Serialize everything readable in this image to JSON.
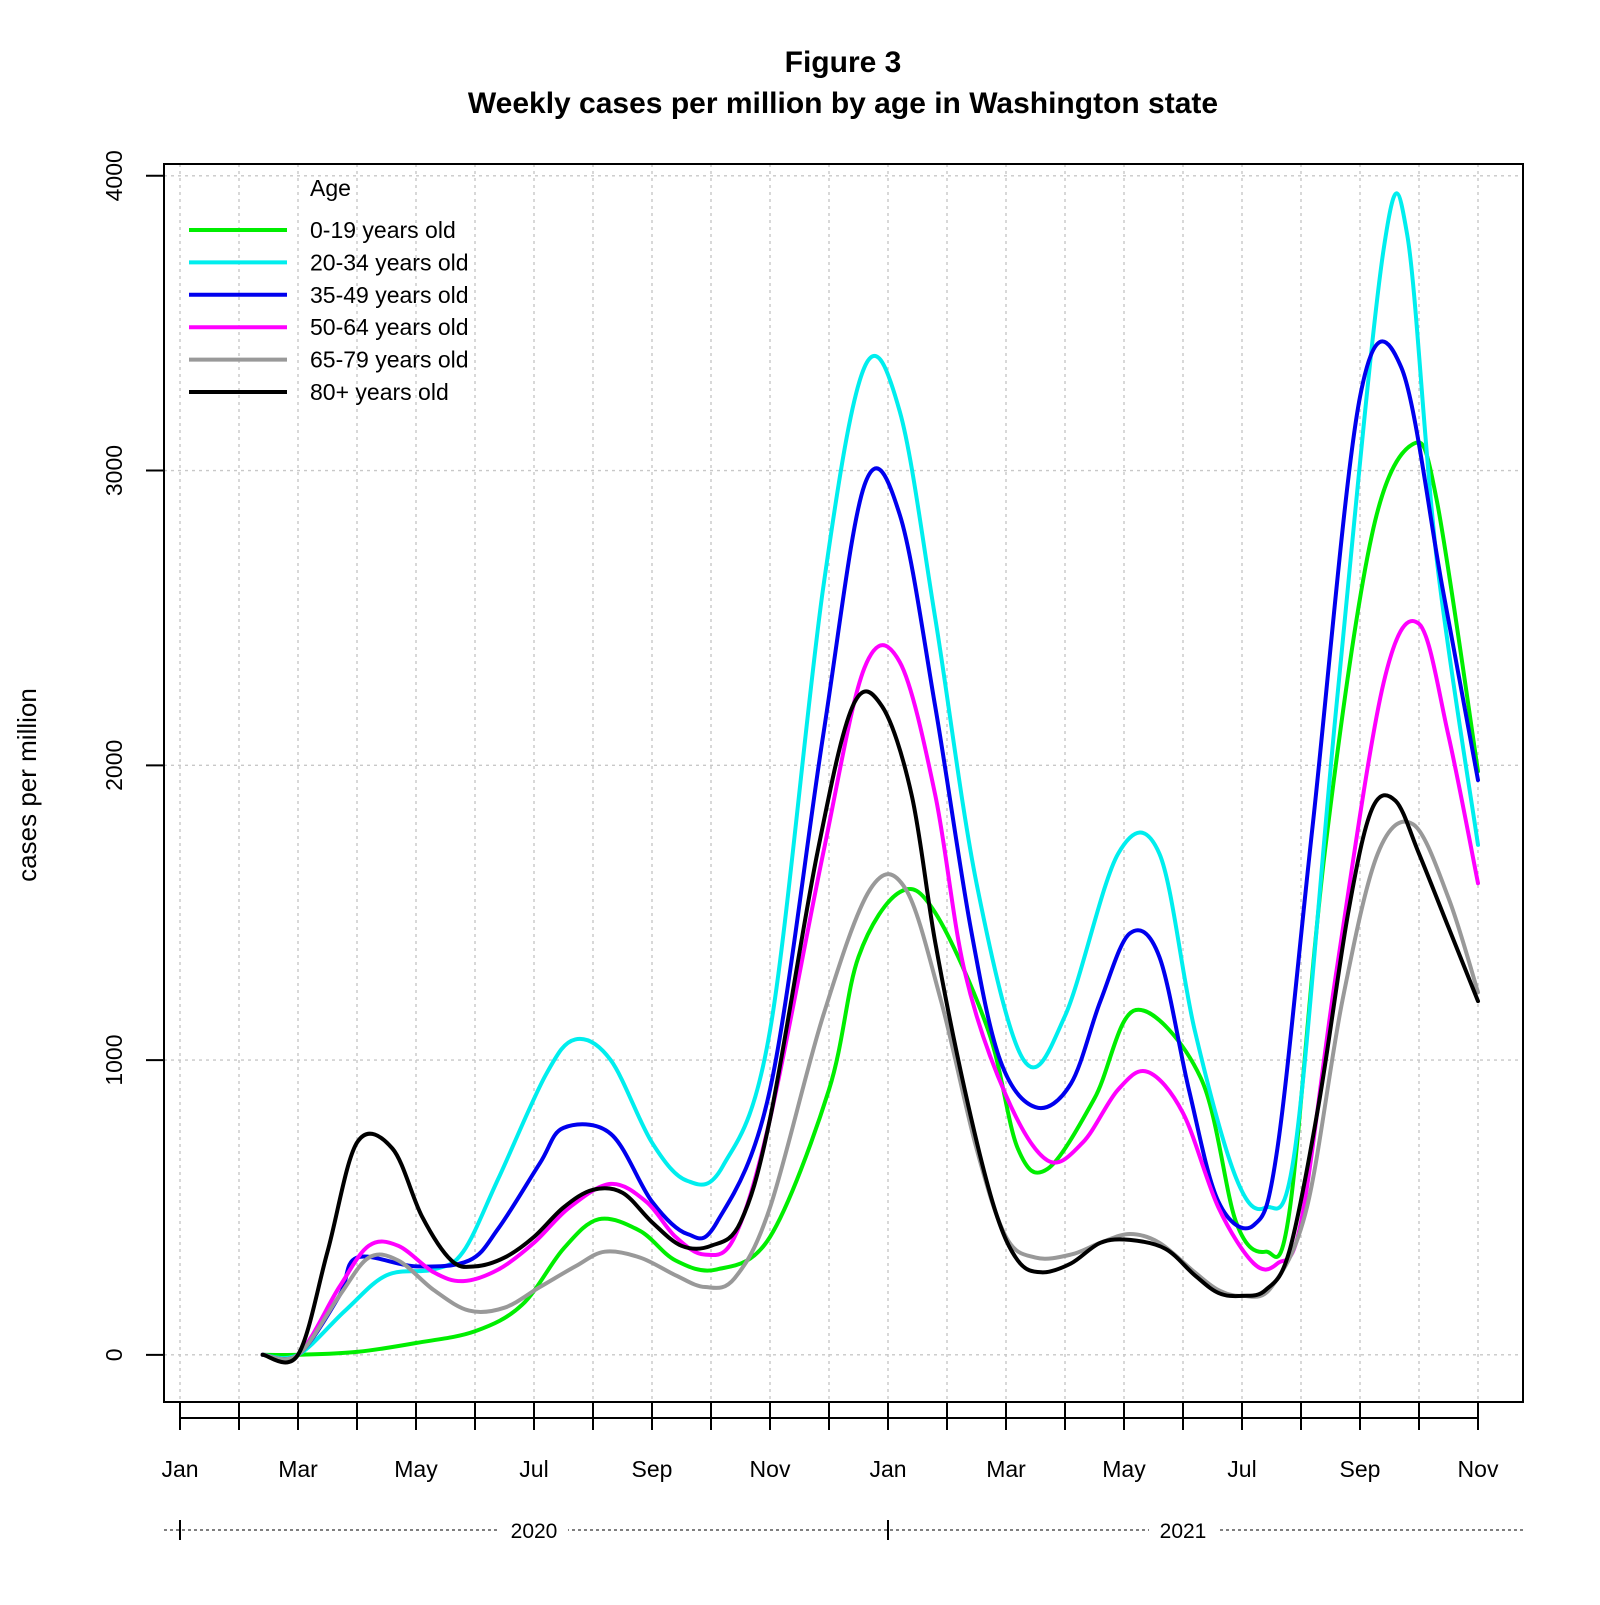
{
  "chart_data": {
    "type": "line",
    "title": "Figure 3",
    "subtitle": "Weekly cases per million by age in Washington state",
    "xlabel": "",
    "ylabel": "cases per million",
    "ylim": [
      -160,
      4040
    ],
    "y_ticks": [
      0,
      1000,
      2000,
      3000,
      4000
    ],
    "grid": true,
    "x_ticks": [
      "Jan",
      "Mar",
      "May",
      "Jul",
      "Sep",
      "Nov",
      "Jan",
      "Mar",
      "May",
      "Jul",
      "Sep",
      "Nov"
    ],
    "year_labels": [
      "2020",
      "2021"
    ],
    "legend": {
      "title": "Age",
      "placement": "top-left"
    },
    "x_unit": "month index (0 = Jan 1 2020)",
    "series": [
      {
        "name": "0-19 years old",
        "color": "#00ee00",
        "x": [
          1.4,
          2.0,
          3.0,
          4.0,
          5.0,
          5.8,
          6.5,
          7.1,
          7.8,
          8.4,
          9.1,
          10.0,
          11.0,
          11.5,
          12.2,
          12.8,
          13.7,
          14.2,
          14.7,
          15.5,
          16.2,
          17.3,
          17.9,
          18.4,
          18.8,
          19.4,
          20.2,
          20.9,
          21.3,
          22.0
        ],
        "y": [
          0,
          0,
          10,
          40,
          80,
          170,
          360,
          460,
          420,
          320,
          290,
          400,
          900,
          1350,
          1570,
          1500,
          1100,
          700,
          630,
          870,
          1170,
          940,
          450,
          350,
          480,
          1700,
          2780,
          3090,
          2900,
          1980
        ]
      },
      {
        "name": "20-34 years old",
        "color": "#00eeee",
        "x": [
          1.4,
          2.0,
          2.8,
          3.5,
          4.3,
          4.8,
          5.4,
          6.2,
          6.7,
          7.3,
          8.0,
          8.6,
          9.2,
          10.0,
          10.9,
          11.6,
          12.2,
          12.8,
          13.5,
          14.3,
          15.0,
          15.9,
          16.6,
          17.2,
          17.9,
          18.4,
          18.9,
          19.6,
          20.4,
          20.8,
          21.3,
          22.0
        ],
        "y": [
          0,
          0,
          150,
          270,
          290,
          350,
          600,
          950,
          1070,
          1000,
          720,
          590,
          640,
          1100,
          2600,
          3350,
          3200,
          2500,
          1600,
          1000,
          1150,
          1700,
          1700,
          1100,
          600,
          500,
          700,
          2200,
          3750,
          3800,
          2700,
          1730
        ]
      },
      {
        "name": "35-49 years old",
        "color": "#0000ee",
        "x": [
          1.4,
          2.0,
          2.7,
          3.0,
          4.0,
          4.9,
          5.4,
          6.1,
          6.5,
          7.3,
          8.0,
          8.6,
          9.1,
          10.0,
          10.9,
          11.6,
          12.2,
          12.8,
          13.4,
          13.9,
          14.5,
          15.1,
          15.6,
          16.1,
          16.6,
          17.1,
          17.6,
          18.2,
          18.6,
          19.2,
          20.0,
          20.7,
          21.4,
          22.0
        ],
        "y": [
          0,
          0,
          200,
          330,
          300,
          320,
          430,
          650,
          770,
          750,
          520,
          410,
          450,
          900,
          2100,
          2950,
          2850,
          2200,
          1450,
          1000,
          840,
          920,
          1200,
          1430,
          1350,
          900,
          520,
          440,
          700,
          1800,
          3250,
          3350,
          2600,
          1950
        ]
      },
      {
        "name": "50-64 years old",
        "color": "#ff00ff",
        "x": [
          1.4,
          2.0,
          2.7,
          3.2,
          3.7,
          4.3,
          4.8,
          5.4,
          6.0,
          6.6,
          7.3,
          7.9,
          8.4,
          8.9,
          9.4,
          10.0,
          10.9,
          11.6,
          12.2,
          12.8,
          13.3,
          14.0,
          14.7,
          15.3,
          15.9,
          16.4,
          17.0,
          17.6,
          18.2,
          18.6,
          19.0,
          19.6,
          20.4,
          21.0,
          21.5,
          22.0
        ],
        "y": [
          0,
          0,
          230,
          370,
          370,
          280,
          250,
          290,
          380,
          500,
          580,
          520,
          400,
          340,
          400,
          800,
          1700,
          2330,
          2350,
          1900,
          1300,
          880,
          660,
          720,
          900,
          960,
          820,
          500,
          310,
          310,
          450,
          1300,
          2280,
          2480,
          2100,
          1600
        ]
      },
      {
        "name": "65-79 years old",
        "color": "#999999",
        "x": [
          1.4,
          2.0,
          2.7,
          3.2,
          3.7,
          4.3,
          4.9,
          5.5,
          6.1,
          6.7,
          7.2,
          7.8,
          8.4,
          8.9,
          9.4,
          10.0,
          10.9,
          11.7,
          12.3,
          12.9,
          13.5,
          14.0,
          14.5,
          15.1,
          15.6,
          16.1,
          16.6,
          17.2,
          17.6,
          18.0,
          18.5,
          19.1,
          19.7,
          20.3,
          20.9,
          21.5,
          22.0
        ],
        "y": [
          0,
          0,
          200,
          330,
          320,
          220,
          150,
          160,
          230,
          300,
          350,
          330,
          270,
          230,
          260,
          500,
          1150,
          1580,
          1580,
          1200,
          700,
          400,
          330,
          340,
          380,
          410,
          380,
          280,
          220,
          200,
          230,
          500,
          1200,
          1700,
          1800,
          1550,
          1230
        ]
      },
      {
        "name": "80+ years old",
        "color": "#000000",
        "x": [
          1.4,
          2.0,
          2.5,
          3.0,
          3.6,
          4.1,
          4.6,
          5.0,
          5.5,
          6.0,
          6.5,
          7.0,
          7.5,
          8.0,
          8.5,
          9.0,
          9.5,
          10.0,
          10.8,
          11.4,
          11.9,
          12.4,
          12.8,
          13.3,
          13.8,
          14.2,
          14.6,
          15.1,
          15.6,
          16.1,
          16.7,
          17.2,
          17.6,
          18.0,
          18.4,
          18.8,
          19.3,
          19.8,
          20.2,
          20.6,
          21.0,
          21.5,
          22.0
        ],
        "y": [
          0,
          0,
          350,
          720,
          700,
          470,
          320,
          300,
          330,
          400,
          500,
          560,
          550,
          450,
          370,
          370,
          450,
          800,
          1700,
          2200,
          2200,
          1900,
          1400,
          900,
          500,
          320,
          280,
          310,
          380,
          390,
          360,
          270,
          210,
          200,
          220,
          350,
          850,
          1500,
          1850,
          1880,
          1700,
          1450,
          1200
        ]
      }
    ]
  }
}
